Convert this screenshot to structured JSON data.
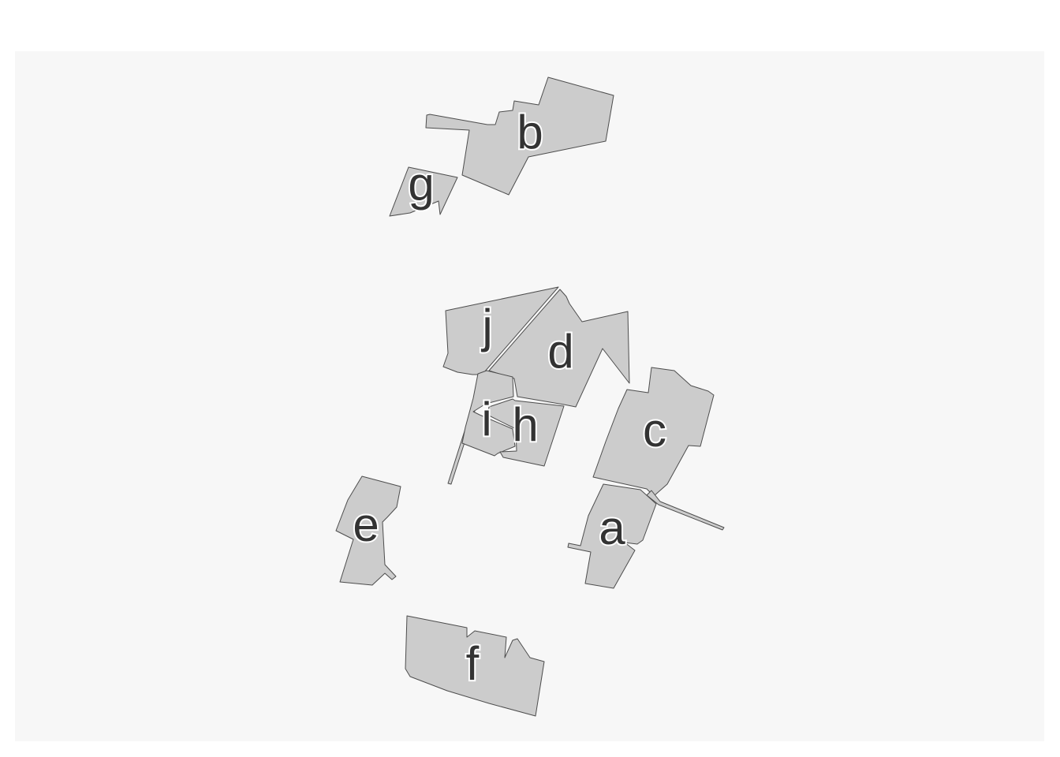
{
  "map": {
    "panel_background": "#f7f7f7",
    "region_fill": "#cccccc",
    "region_stroke": "#4d4d4d",
    "label_color": "#333333",
    "label_halo": "#ffffff",
    "regions": [
      {
        "id": "a",
        "label": "a"
      },
      {
        "id": "b",
        "label": "b"
      },
      {
        "id": "c",
        "label": "c"
      },
      {
        "id": "d",
        "label": "d"
      },
      {
        "id": "e",
        "label": "e"
      },
      {
        "id": "f",
        "label": "f"
      },
      {
        "id": "g",
        "label": "g"
      },
      {
        "id": "h",
        "label": "h"
      },
      {
        "id": "i",
        "label": "i"
      },
      {
        "id": "j",
        "label": "j"
      }
    ]
  }
}
